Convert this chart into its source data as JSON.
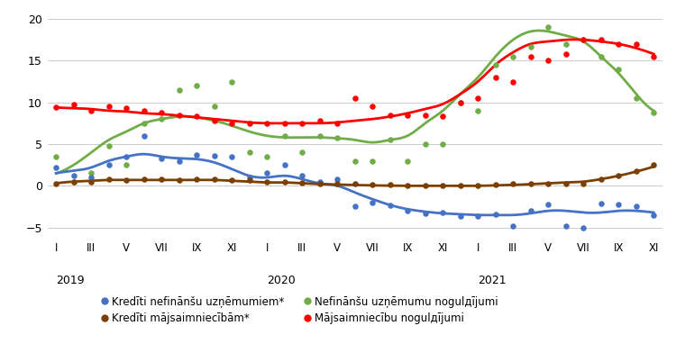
{
  "ylim": [
    -6.5,
    21
  ],
  "yticks": [
    -5,
    0,
    5,
    10,
    15,
    20
  ],
  "bg_color": "#ffffff",
  "grid_color": "#cccccc",
  "series": {
    "krediti_nefinansu": {
      "label": "Kredīti nefinānšu uzņēmumiem*",
      "color": "#4472C4",
      "scatter_x": [
        0,
        1,
        2,
        3,
        4,
        5,
        6,
        7,
        8,
        9,
        10,
        11,
        12,
        13,
        14,
        15,
        16,
        17,
        18,
        19,
        20,
        21,
        22,
        23,
        24,
        25,
        26,
        27,
        28,
        29,
        30,
        31,
        32,
        33,
        34
      ],
      "scatter_y": [
        2.2,
        1.2,
        1.0,
        2.5,
        3.5,
        6.0,
        3.3,
        3.0,
        3.7,
        3.6,
        3.5,
        1.0,
        1.5,
        2.5,
        1.2,
        0.5,
        0.8,
        -2.5,
        -2.0,
        -2.3,
        -3.0,
        -3.3,
        -3.2,
        -3.6,
        -3.6,
        -3.4,
        -4.8,
        -3.0,
        -2.2,
        -4.8,
        -5.0,
        -2.1,
        -2.2,
        -2.5,
        -3.5
      ],
      "smooth_y": [
        1.5,
        1.8,
        2.2,
        3.0,
        3.5,
        3.8,
        3.5,
        3.3,
        3.2,
        2.8,
        2.0,
        1.2,
        1.0,
        1.2,
        0.8,
        0.3,
        0.0,
        -0.8,
        -1.6,
        -2.3,
        -2.8,
        -3.1,
        -3.3,
        -3.4,
        -3.5,
        -3.5,
        -3.5,
        -3.3,
        -3.0,
        -3.0,
        -3.2,
        -3.2,
        -3.0,
        -3.0,
        -3.2
      ]
    },
    "krediti_majsaimniecibam": {
      "label": "Kredīti mājsaimniecībām*",
      "color": "#7B3F00",
      "scatter_x": [
        0,
        1,
        2,
        3,
        4,
        5,
        6,
        7,
        8,
        9,
        10,
        11,
        12,
        13,
        14,
        15,
        16,
        17,
        18,
        19,
        20,
        21,
        22,
        23,
        24,
        25,
        26,
        27,
        28,
        29,
        30,
        31,
        32,
        33,
        34
      ],
      "scatter_y": [
        0.3,
        0.5,
        0.5,
        0.8,
        0.7,
        0.8,
        0.8,
        0.7,
        0.8,
        0.8,
        0.7,
        0.7,
        0.5,
        0.5,
        0.4,
        0.3,
        0.2,
        0.2,
        0.1,
        0.1,
        0.0,
        0.0,
        0.0,
        0.0,
        0.0,
        0.1,
        0.2,
        0.3,
        0.3,
        0.2,
        0.3,
        0.8,
        1.2,
        1.8,
        2.5
      ],
      "smooth_y": [
        0.3,
        0.5,
        0.6,
        0.7,
        0.7,
        0.7,
        0.7,
        0.7,
        0.7,
        0.7,
        0.6,
        0.5,
        0.4,
        0.4,
        0.3,
        0.2,
        0.15,
        0.1,
        0.05,
        0.02,
        0.0,
        0.0,
        0.0,
        0.0,
        0.0,
        0.05,
        0.1,
        0.2,
        0.3,
        0.4,
        0.5,
        0.8,
        1.2,
        1.7,
        2.3
      ]
    },
    "nefinansu_noguldijumi": {
      "label": "Nefinānšu uzņēmumu nogulдījumi",
      "color": "#70AD47",
      "scatter_x": [
        0,
        1,
        2,
        3,
        4,
        5,
        6,
        7,
        8,
        9,
        10,
        11,
        12,
        13,
        14,
        15,
        16,
        17,
        18,
        19,
        20,
        21,
        22,
        23,
        24,
        25,
        26,
        27,
        28,
        29,
        30,
        31,
        32,
        33,
        34
      ],
      "scatter_y": [
        3.5,
        0.5,
        1.5,
        4.8,
        2.5,
        7.5,
        8.0,
        11.5,
        12.0,
        9.5,
        12.5,
        4.0,
        3.5,
        6.0,
        4.0,
        6.0,
        5.8,
        3.0,
        3.0,
        5.5,
        3.0,
        5.0,
        5.0,
        10.0,
        9.0,
        14.5,
        15.5,
        16.7,
        19.0,
        17.0,
        17.5,
        15.5,
        14.0,
        10.5,
        8.8
      ],
      "smooth_y": [
        1.5,
        2.5,
        4.0,
        5.5,
        6.5,
        7.5,
        8.0,
        8.3,
        8.2,
        7.8,
        7.2,
        6.5,
        6.0,
        5.8,
        5.8,
        5.8,
        5.7,
        5.5,
        5.2,
        5.5,
        6.0,
        7.5,
        9.0,
        11.0,
        13.0,
        15.5,
        17.5,
        18.5,
        18.5,
        18.0,
        17.3,
        15.5,
        13.5,
        11.0,
        9.0
      ]
    },
    "majsaimniecibas_noguldijumi": {
      "label": "Mājsaimniecību nogulдījumi",
      "color": "#FF0000",
      "scatter_x": [
        0,
        1,
        2,
        3,
        4,
        5,
        6,
        7,
        8,
        9,
        10,
        11,
        12,
        13,
        14,
        15,
        16,
        17,
        18,
        19,
        20,
        21,
        22,
        23,
        24,
        25,
        26,
        27,
        28,
        29,
        30,
        31,
        32,
        33,
        34
      ],
      "scatter_y": [
        9.4,
        9.8,
        9.0,
        9.5,
        9.3,
        9.0,
        8.8,
        8.5,
        8.3,
        7.8,
        7.5,
        7.5,
        7.5,
        7.5,
        7.5,
        7.8,
        7.5,
        10.5,
        9.5,
        8.5,
        8.5,
        8.5,
        8.3,
        10.0,
        10.5,
        13.0,
        12.5,
        15.5,
        15.0,
        15.8,
        17.5,
        17.5,
        17.0,
        17.0,
        15.5
      ],
      "smooth_y": [
        9.4,
        9.3,
        9.2,
        9.0,
        8.9,
        8.7,
        8.6,
        8.4,
        8.2,
        8.0,
        7.8,
        7.6,
        7.5,
        7.5,
        7.5,
        7.5,
        7.6,
        7.8,
        8.0,
        8.3,
        8.7,
        9.2,
        9.8,
        11.0,
        12.5,
        14.5,
        16.0,
        17.0,
        17.3,
        17.5,
        17.5,
        17.3,
        17.0,
        16.5,
        15.8
      ]
    }
  },
  "xtick_positions": [
    0,
    2,
    4,
    6,
    8,
    10,
    12,
    14,
    16,
    18,
    20,
    22,
    24,
    26,
    28,
    30,
    32,
    34
  ],
  "xtick_labels": [
    "I",
    "III",
    "V",
    "VII",
    "IX",
    "XI",
    "I",
    "III",
    "V",
    "VII",
    "IX",
    "XI",
    "I",
    "III",
    "V",
    "VII",
    "IX",
    "XI"
  ],
  "year_labels": [
    {
      "text": "2019",
      "x": 0
    },
    {
      "text": "2020",
      "x": 12
    },
    {
      "text": "2021",
      "x": 24
    }
  ],
  "legend": [
    {
      "label": "Kredīti nefinānšu uzņēmumiem*",
      "color": "#4472C4"
    },
    {
      "label": "Kredīti mājsaimniecībām*",
      "color": "#7B3F00"
    },
    {
      "label": "Nefinānšu uzņēmumu nogulдījumi",
      "color": "#70AD47"
    },
    {
      "label": "Mājsaimniecību nogulдījumi",
      "color": "#FF0000"
    }
  ]
}
